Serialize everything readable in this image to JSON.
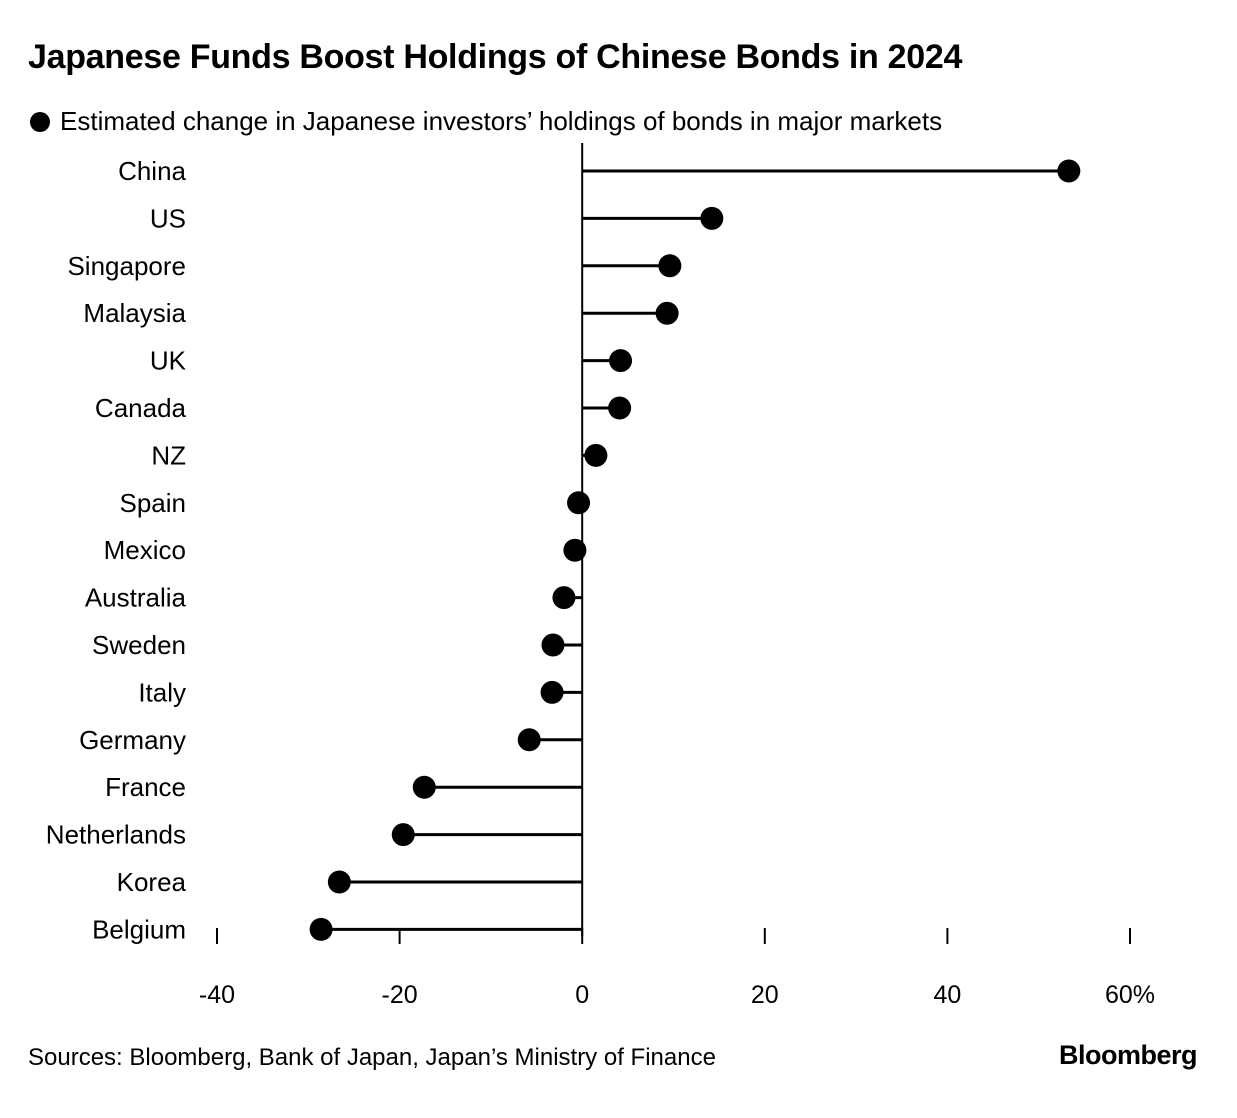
{
  "title": "Japanese Funds Boost Holdings of Chinese Bonds in 2024",
  "legend_label": "Estimated change in Japanese investors’ holdings of bonds in major markets",
  "source": "Sources: Bloomberg, Bank of Japan, Japan’s Ministry of Finance",
  "brand": "Bloomberg",
  "chart_data": {
    "type": "scatter",
    "style": "lollipop",
    "orientation": "horizontal",
    "categories": [
      "China",
      "US",
      "Singapore",
      "Malaysia",
      "UK",
      "Canada",
      "NZ",
      "Spain",
      "Mexico",
      "Australia",
      "Sweden",
      "Italy",
      "Germany",
      "France",
      "Netherlands",
      "Korea",
      "Belgium"
    ],
    "series": [
      {
        "name": "Estimated change in Japanese investors’ holdings of bonds in major markets",
        "values": [
          53.3,
          14.2,
          9.6,
          9.3,
          4.2,
          4.1,
          1.5,
          -0.4,
          -0.8,
          -2.0,
          -3.2,
          -3.3,
          -5.8,
          -17.3,
          -19.6,
          -26.6,
          -28.6
        ]
      }
    ],
    "xlim": [
      -40,
      60
    ],
    "xticks": [
      -40,
      -20,
      0,
      20,
      40,
      60
    ],
    "xtick_labels": [
      "-40",
      "-20",
      "0",
      "20",
      "40",
      "60%"
    ],
    "grid": false,
    "color": "#000000"
  }
}
